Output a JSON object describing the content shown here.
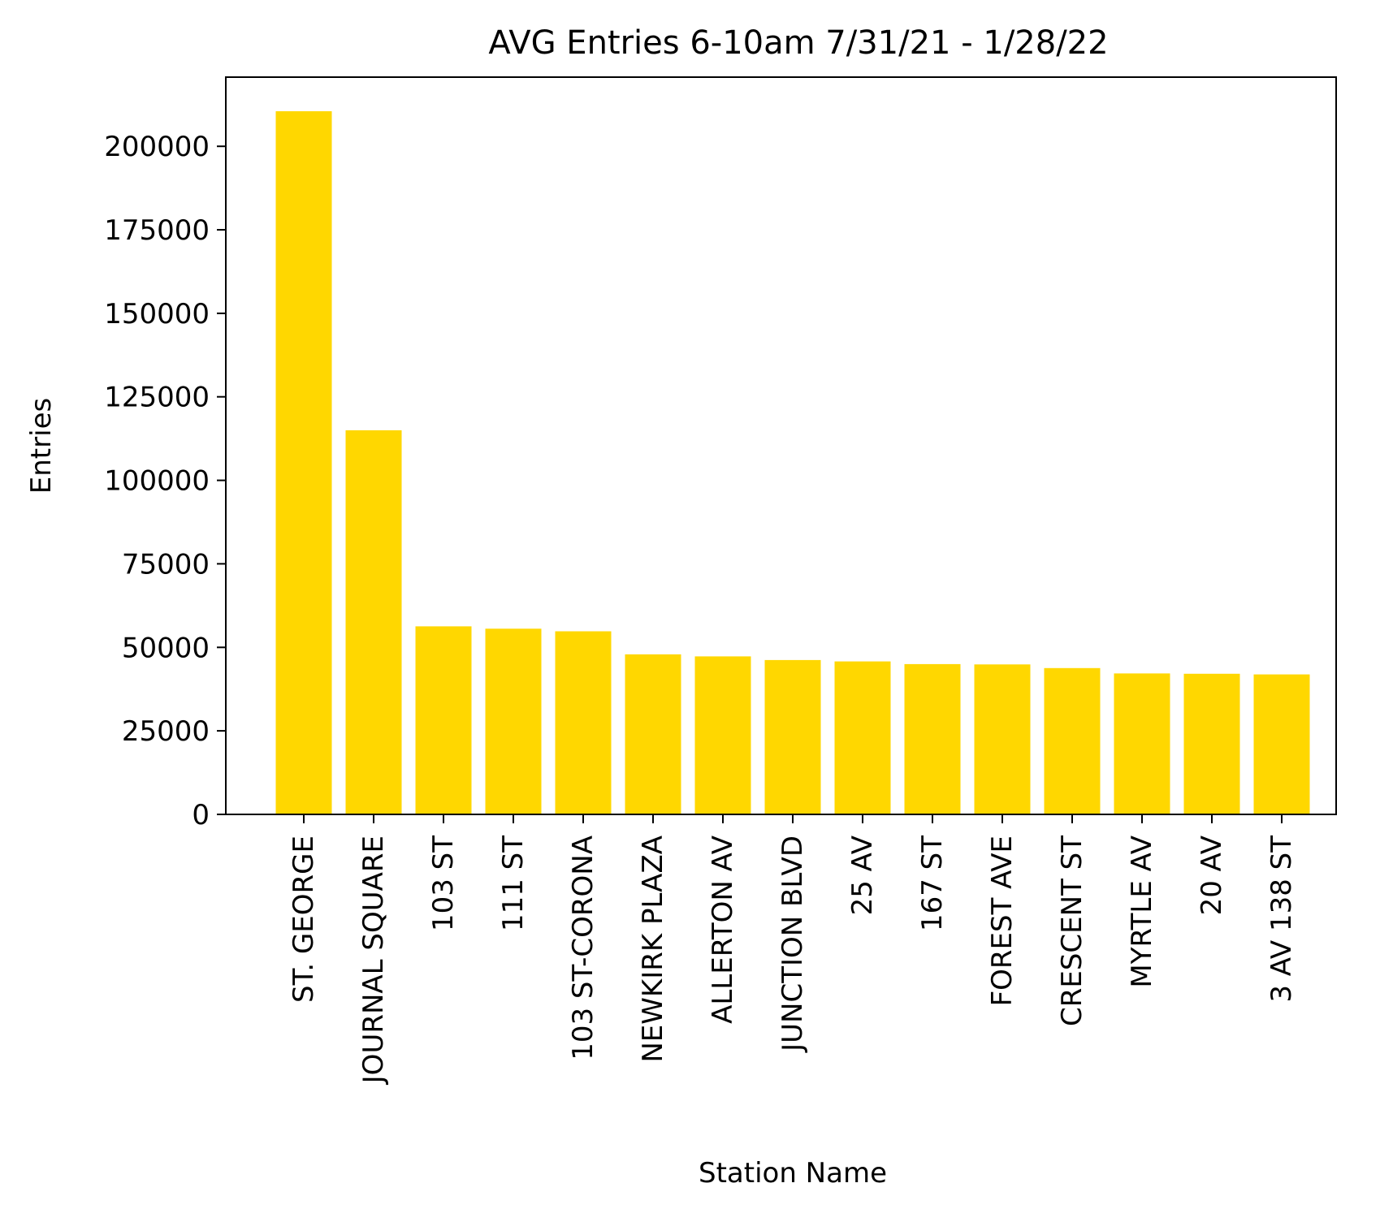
{
  "chart_data": {
    "type": "bar",
    "title": "AVG Entries 6-10am 7/31/21 - 1/28/22",
    "xlabel": "Station Name",
    "ylabel": "Entries",
    "categories": [
      "ST. GEORGE",
      "JOURNAL SQUARE",
      "103 ST",
      "111 ST",
      "103 ST-CORONA",
      "NEWKIRK PLAZA",
      "ALLERTON AV",
      "JUNCTION BLVD",
      "25 AV",
      "167 ST",
      "FOREST AVE",
      "CRESCENT ST",
      "MYRTLE AV",
      "20 AV",
      "3 AV 138 ST"
    ],
    "values": [
      210500,
      115000,
      56300,
      55600,
      54800,
      47900,
      47300,
      46200,
      45800,
      45000,
      44900,
      43800,
      42200,
      42100,
      41900
    ],
    "ylim": [
      0,
      220700
    ],
    "yticks": [
      0,
      25000,
      50000,
      75000,
      100000,
      125000,
      150000,
      175000,
      200000
    ],
    "ytick_labels": [
      "0",
      "25000",
      "50000",
      "75000",
      "100000",
      "125000",
      "150000",
      "175000",
      "200000"
    ],
    "bar_color": "#FFD700",
    "grid": false,
    "legend": "none"
  }
}
